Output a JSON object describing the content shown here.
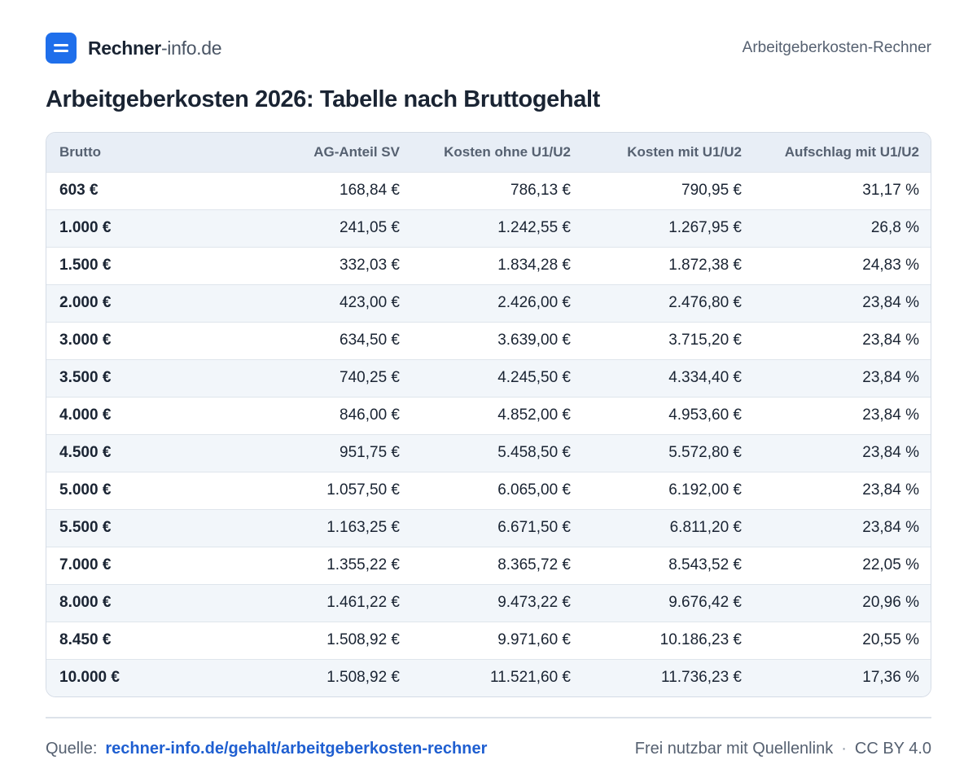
{
  "header": {
    "brand_strong": "Rechner",
    "brand_light": "-info.de",
    "right_label": "Arbeitgeberkosten-Rechner"
  },
  "title": "Arbeitgeberkosten 2026: Tabelle nach Bruttogehalt",
  "table": {
    "columns": [
      "Brutto",
      "AG-Anteil SV",
      "Kosten ohne U1/U2",
      "Kosten mit U1/U2",
      "Aufschlag mit U1/U2"
    ],
    "rows": [
      [
        "603 €",
        "168,84 €",
        "786,13 €",
        "790,95 €",
        "31,17 %"
      ],
      [
        "1.000 €",
        "241,05 €",
        "1.242,55 €",
        "1.267,95 €",
        "26,8 %"
      ],
      [
        "1.500 €",
        "332,03 €",
        "1.834,28 €",
        "1.872,38 €",
        "24,83 %"
      ],
      [
        "2.000 €",
        "423,00 €",
        "2.426,00 €",
        "2.476,80 €",
        "23,84 %"
      ],
      [
        "3.000 €",
        "634,50 €",
        "3.639,00 €",
        "3.715,20 €",
        "23,84 %"
      ],
      [
        "3.500 €",
        "740,25 €",
        "4.245,50 €",
        "4.334,40 €",
        "23,84 %"
      ],
      [
        "4.000 €",
        "846,00 €",
        "4.852,00 €",
        "4.953,60 €",
        "23,84 %"
      ],
      [
        "4.500 €",
        "951,75 €",
        "5.458,50 €",
        "5.572,80 €",
        "23,84 %"
      ],
      [
        "5.000 €",
        "1.057,50 €",
        "6.065,00 €",
        "6.192,00 €",
        "23,84 %"
      ],
      [
        "5.500 €",
        "1.163,25 €",
        "6.671,50 €",
        "6.811,20 €",
        "23,84 %"
      ],
      [
        "7.000 €",
        "1.355,22 €",
        "8.365,72 €",
        "8.543,52 €",
        "22,05 %"
      ],
      [
        "8.000 €",
        "1.461,22 €",
        "9.473,22 €",
        "9.676,42 €",
        "20,96 %"
      ],
      [
        "8.450 €",
        "1.508,92 €",
        "9.971,60 €",
        "10.186,23 €",
        "20,55 %"
      ],
      [
        "10.000 €",
        "1.508,92 €",
        "11.521,60 €",
        "11.736,23 €",
        "17,36 %"
      ]
    ]
  },
  "footer": {
    "source_label": "Quelle:",
    "source_link": "rechner-info.de/gehalt/arbeitgeberkosten-rechner",
    "license_text": "Frei nutzbar mit Quellenlink",
    "separator": "·",
    "license": "CC BY 4.0"
  },
  "colors": {
    "accent": "#1f6feb",
    "link": "#1f5fd1",
    "text": "#1a2433",
    "muted": "#566171",
    "header_bg": "#e8eef6",
    "row_alt_bg": "#f2f6fa"
  },
  "icons": {
    "logo": "menu-lines-icon"
  }
}
